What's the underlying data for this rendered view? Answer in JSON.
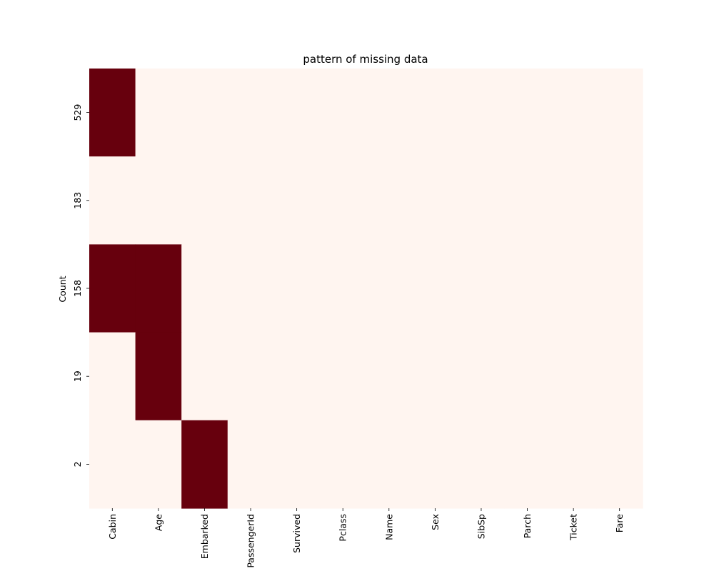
{
  "chart_data": {
    "type": "heatmap",
    "title": "pattern of missing data",
    "xlabel": "",
    "ylabel": "Count",
    "columns": [
      "Cabin",
      "Age",
      "Embarked",
      "PassengerId",
      "Survived",
      "Pclass",
      "Name",
      "Sex",
      "SibSp",
      "Parch",
      "Ticket",
      "Fare"
    ],
    "rows": [
      "529",
      "183",
      "158",
      "19",
      "2"
    ],
    "values": [
      [
        1,
        0,
        0,
        0,
        0,
        0,
        0,
        0,
        0,
        0,
        0,
        0
      ],
      [
        0,
        0,
        0,
        0,
        0,
        0,
        0,
        0,
        0,
        0,
        0,
        0
      ],
      [
        1,
        1,
        0,
        0,
        0,
        0,
        0,
        0,
        0,
        0,
        0,
        0
      ],
      [
        0,
        1,
        0,
        0,
        0,
        0,
        0,
        0,
        0,
        0,
        0,
        0
      ],
      [
        0,
        0,
        1,
        0,
        0,
        0,
        0,
        0,
        0,
        0,
        0,
        0
      ]
    ],
    "colors": {
      "missing": "#67000d",
      "present": "#fff5f0"
    },
    "colorbar": false,
    "grid": false
  }
}
